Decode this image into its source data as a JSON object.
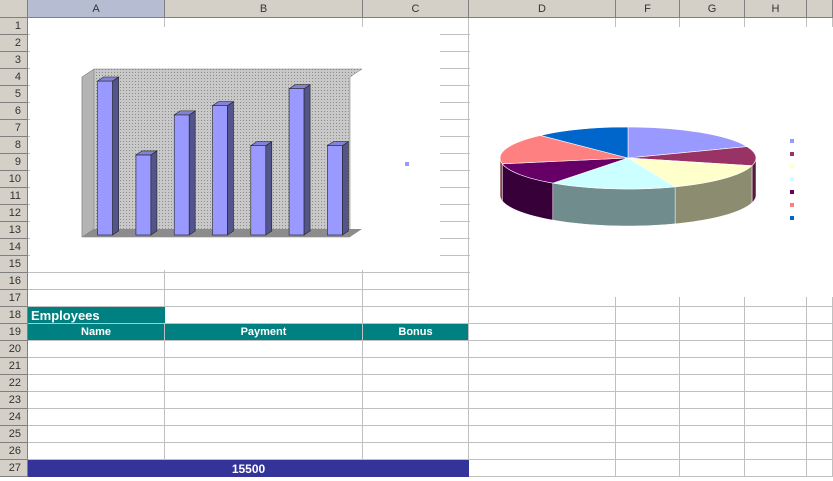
{
  "columns": [
    "A",
    "B",
    "C",
    "D",
    "F",
    "G",
    "H"
  ],
  "selected_column": "A",
  "rows": [
    "1",
    "2",
    "3",
    "4",
    "5",
    "6",
    "7",
    "8",
    "9",
    "10",
    "11",
    "12",
    "13",
    "14",
    "15",
    "16",
    "17",
    "18",
    "19",
    "20",
    "21",
    "22",
    "23",
    "24",
    "25",
    "26",
    "27"
  ],
  "table": {
    "title": "Employees",
    "headers": [
      "Name",
      "Payment",
      "Bonus"
    ],
    "total": "15500"
  },
  "colors": {
    "teal_header": "#008080",
    "total_bar": "#333399",
    "bar_fill": "#9999ff"
  },
  "chart_data": [
    {
      "type": "bar",
      "categories": [
        "",
        "",
        "",
        "",
        "",
        "",
        ""
      ],
      "values": [
        100,
        52,
        78,
        84,
        58,
        95,
        58
      ],
      "title": "",
      "xlabel": "",
      "ylabel": "",
      "ylim": [
        0,
        100
      ],
      "legend": "right",
      "style": "3d-column"
    },
    {
      "type": "pie",
      "values": [
        19,
        10,
        15,
        16,
        12,
        16,
        12
      ],
      "colors": [
        "#9999ff",
        "#993366",
        "#ffffcc",
        "#ccffff",
        "#660066",
        "#ff8080",
        "#0066cc"
      ],
      "title": "",
      "legend": "right",
      "style": "3d-pie"
    }
  ]
}
